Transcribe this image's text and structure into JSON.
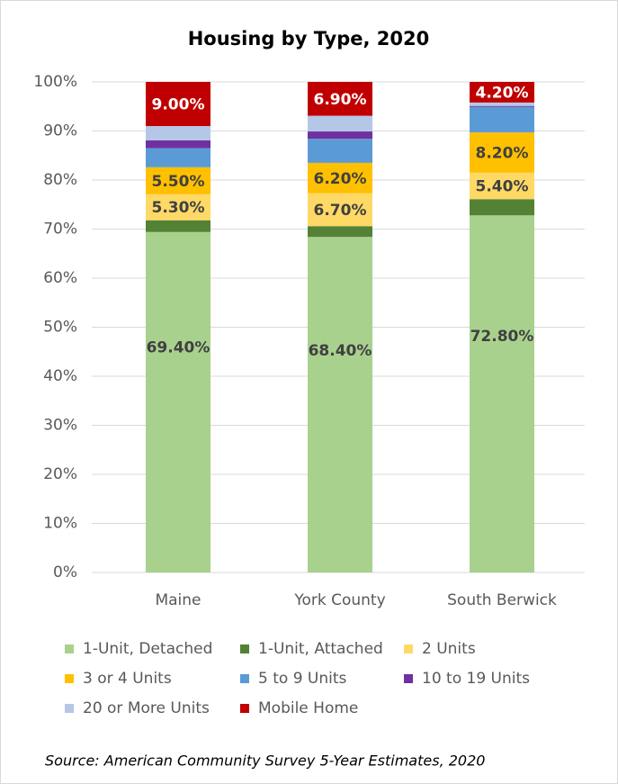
{
  "chart_data": {
    "type": "stacked_bar",
    "title": "Housing by Type, 2020",
    "categories": [
      "Maine",
      "York County",
      "South Berwick"
    ],
    "series": [
      {
        "name": "1-Unit, Detached",
        "color": "#a9d18e",
        "values": [
          69.4,
          68.4,
          72.8
        ],
        "value_labels": [
          "69.40%",
          "68.40%",
          "72.80%"
        ]
      },
      {
        "name": "1-Unit, Attached",
        "color": "#548235",
        "values": [
          2.4,
          2.2,
          3.3
        ],
        "value_labels": [
          null,
          null,
          null
        ]
      },
      {
        "name": "2 Units",
        "color": "#ffd966",
        "values": [
          5.3,
          6.7,
          5.4
        ],
        "value_labels": [
          "5.30%",
          "6.70%",
          "5.40%"
        ]
      },
      {
        "name": "3 or 4 Units",
        "color": "#ffc000",
        "values": [
          5.5,
          6.2,
          8.2
        ],
        "value_labels": [
          "5.50%",
          "6.20%",
          "8.20%"
        ]
      },
      {
        "name": "5 to 9 Units",
        "color": "#5b9bd5",
        "values": [
          3.9,
          4.9,
          5.2
        ],
        "value_labels": [
          null,
          null,
          null
        ]
      },
      {
        "name": "10 to 19 Units",
        "color": "#7030a0",
        "values": [
          1.6,
          1.5,
          0.2
        ],
        "value_labels": [
          null,
          null,
          null
        ]
      },
      {
        "name": "20 or More Units",
        "color": "#b4c7e7",
        "values": [
          2.9,
          3.2,
          0.7
        ],
        "value_labels": [
          null,
          null,
          null
        ]
      },
      {
        "name": "Mobile Home",
        "color": "#c00000",
        "values": [
          9.0,
          6.9,
          4.2
        ],
        "value_labels": [
          "9.00%",
          "6.90%",
          "4.20%"
        ]
      }
    ],
    "ylim": [
      0,
      100
    ],
    "yticks": [
      {
        "value": 0,
        "label": "0%"
      },
      {
        "value": 10,
        "label": "10%"
      },
      {
        "value": 20,
        "label": "20%"
      },
      {
        "value": 30,
        "label": "30%"
      },
      {
        "value": 40,
        "label": "40%"
      },
      {
        "value": 50,
        "label": "50%"
      },
      {
        "value": 60,
        "label": "60%"
      },
      {
        "value": 70,
        "label": "70%"
      },
      {
        "value": 80,
        "label": "80%"
      },
      {
        "value": 90,
        "label": "90%"
      },
      {
        "value": 100,
        "label": "100%"
      }
    ],
    "grid": true,
    "legend": "bottom",
    "source": "Source: American Community Survey 5-Year Estimates, 2020"
  }
}
